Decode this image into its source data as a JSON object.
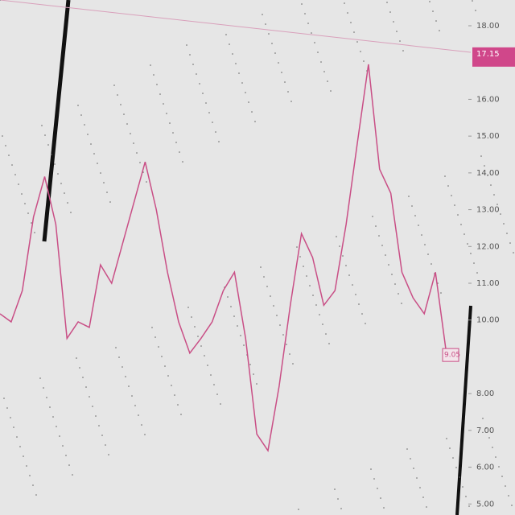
{
  "chart_data": {
    "type": "line",
    "color": "#c94f86",
    "values": [
      10.17,
      9.95,
      10.8,
      12.8,
      13.9,
      12.6,
      9.5,
      9.95,
      9.8,
      11.5,
      11.0,
      12.1,
      13.2,
      14.3,
      13.0,
      11.3,
      9.95,
      9.1,
      9.5,
      9.95,
      10.8,
      11.3,
      9.5,
      6.9,
      6.45,
      8.2,
      10.4,
      12.35,
      11.7,
      10.4,
      10.8,
      12.6,
      14.8,
      16.95,
      14.1,
      13.45,
      11.3,
      10.6,
      10.17,
      11.3,
      9.05
    ],
    "ylim": [
      4.7,
      18.7
    ],
    "yticks": [
      {
        "value": 5,
        "label": "5.00"
      },
      {
        "value": 6,
        "label": "6.00"
      },
      {
        "value": 7,
        "label": "7.00"
      },
      {
        "value": 8,
        "label": "8.00"
      },
      {
        "value": 10,
        "label": "10.00"
      },
      {
        "value": 11,
        "label": "11.00"
      },
      {
        "value": 12,
        "label": "12.00"
      },
      {
        "value": 13,
        "label": "13.00"
      },
      {
        "value": 14,
        "label": "14.00"
      },
      {
        "value": 15,
        "label": "15.00"
      },
      {
        "value": 16,
        "label": "16.00"
      },
      {
        "value": 18,
        "label": "18.00"
      }
    ],
    "current_price": 17.15
  }
}
